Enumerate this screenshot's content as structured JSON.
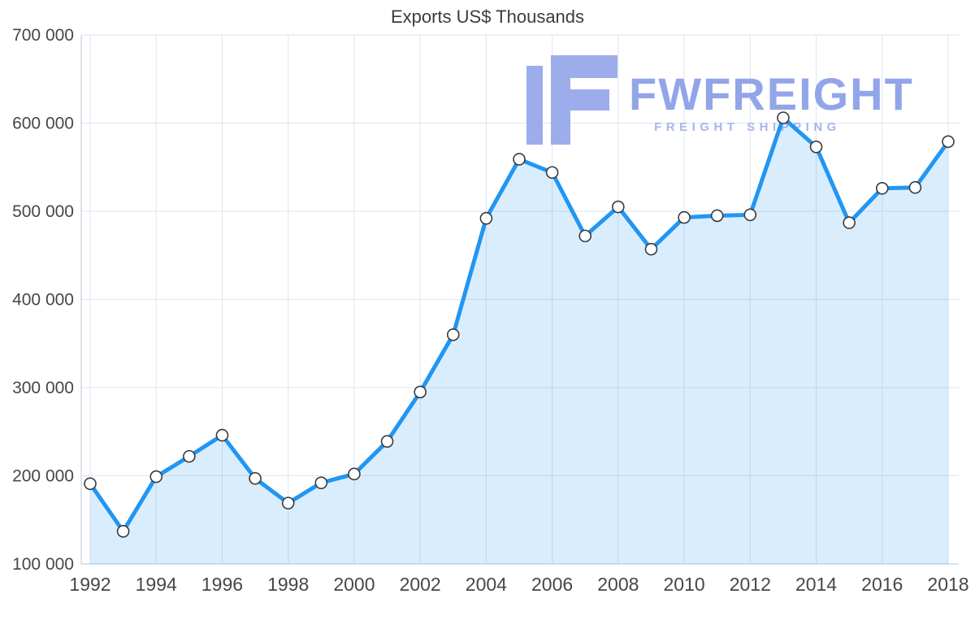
{
  "chart_data": {
    "type": "line",
    "title": "Exports US$ Thousands",
    "x": [
      1992,
      1993,
      1994,
      1995,
      1996,
      1997,
      1998,
      1999,
      2000,
      2001,
      2002,
      2003,
      2004,
      2005,
      2006,
      2007,
      2008,
      2009,
      2010,
      2011,
      2012,
      2013,
      2014,
      2015,
      2016,
      2017,
      2018
    ],
    "values": [
      191000,
      137000,
      199000,
      222000,
      246000,
      197000,
      169000,
      192000,
      202000,
      239000,
      295000,
      360000,
      492000,
      559000,
      544000,
      472000,
      505000,
      457000,
      493000,
      495000,
      496000,
      606000,
      573000,
      487000,
      526000,
      527000,
      579000
    ],
    "ylim": [
      100000,
      700000
    ],
    "ylabel": "",
    "xlabel": "",
    "grid": true,
    "legend": "none",
    "y_ticks": {
      "values": [
        100000,
        200000,
        300000,
        400000,
        500000,
        600000,
        700000
      ],
      "labels": [
        "100 000",
        "200 000",
        "300 000",
        "400 000",
        "500 000",
        "600 000",
        "700 000"
      ]
    },
    "x_ticks": [
      1992,
      1994,
      1996,
      1998,
      2000,
      2002,
      2004,
      2006,
      2008,
      2010,
      2012,
      2014,
      2016,
      2018
    ],
    "line_color": "#2196f3",
    "area_color": "rgba(33,150,243,0.17)",
    "marker_fill": "#ffffff",
    "marker_stroke": "#3a3a3a",
    "grid_color": "#dde5f0",
    "axis_color": "#bcc5d2",
    "tick_color": "#474747"
  },
  "watermark": {
    "brand": "FWFREIGHT",
    "tagline": "FREIGHT SHIPPING",
    "brand_color": "#8da1e8",
    "tagline_color": "#a3b2ee",
    "logo_color": "#98a8ea"
  }
}
